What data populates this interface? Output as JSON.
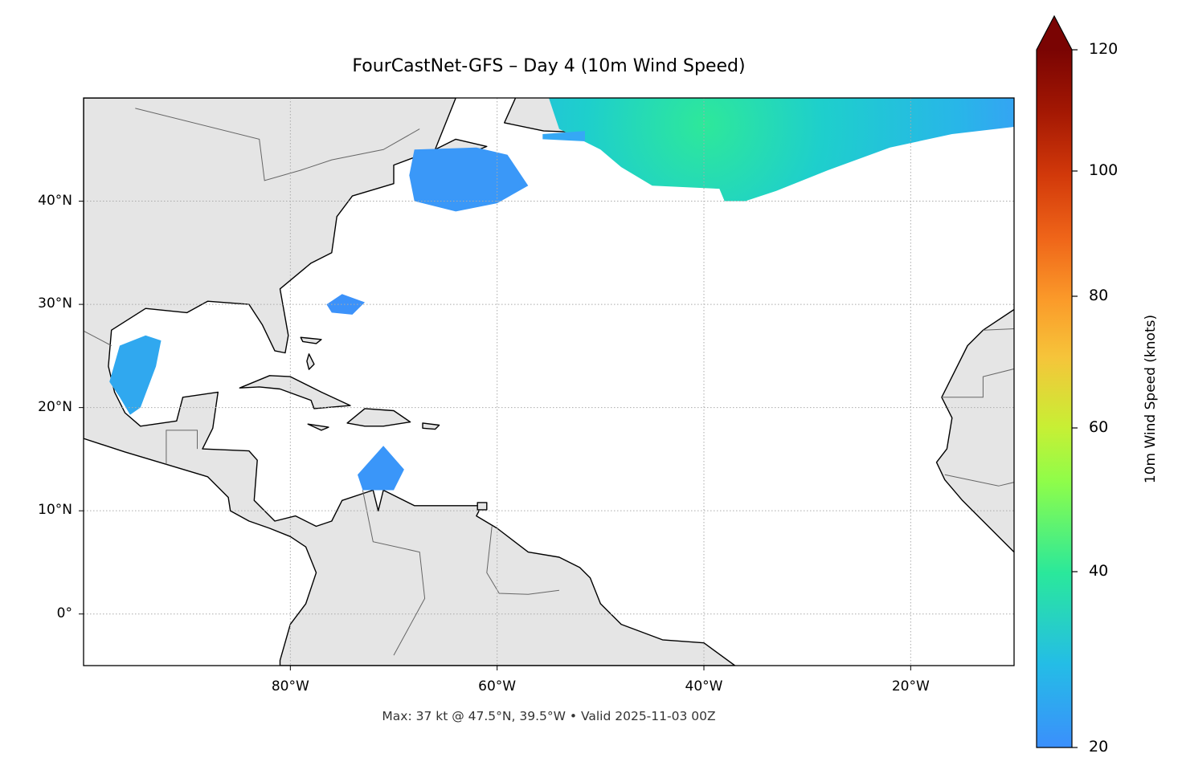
{
  "title": "FourCastNet-GFS – Day 4 (10m Wind Speed)",
  "footer": "Max: 37 kt @ 47.5°N, 39.5°W • Valid 2025-11-03 00Z",
  "map": {
    "extent": {
      "lon": [
        -100,
        -10
      ],
      "lat": [
        -5,
        50
      ]
    },
    "land_color": "#e5e5e5",
    "coast_color": "#000000",
    "border_color": "#666666",
    "lon_ticks": [
      {
        "value": -80,
        "label": "80°W"
      },
      {
        "value": -60,
        "label": "60°W"
      },
      {
        "value": -40,
        "label": "40°W"
      },
      {
        "value": -20,
        "label": "20°W"
      }
    ],
    "lat_ticks": [
      {
        "value": 40,
        "label": "40°N"
      },
      {
        "value": 30,
        "label": "30°N"
      },
      {
        "value": 20,
        "label": "20°N"
      },
      {
        "value": 10,
        "label": "10°N"
      },
      {
        "value": 0,
        "label": "0°"
      }
    ],
    "gridlines": true,
    "max_point": {
      "lat": 47.5,
      "lon": -39.5,
      "value_kt": 37
    }
  },
  "colorbar": {
    "label": "10m Wind Speed (knots)",
    "range": [
      20,
      120
    ],
    "extend": "max",
    "colormap": "turbo",
    "ticks": [
      {
        "value": 120,
        "label": "120"
      },
      {
        "value": 100,
        "label": "100"
      },
      {
        "value": 80,
        "label": "80"
      },
      {
        "value": 60,
        "label": "60"
      },
      {
        "value": 40,
        "label": "40"
      },
      {
        "value": 20,
        "label": "20"
      }
    ]
  }
}
